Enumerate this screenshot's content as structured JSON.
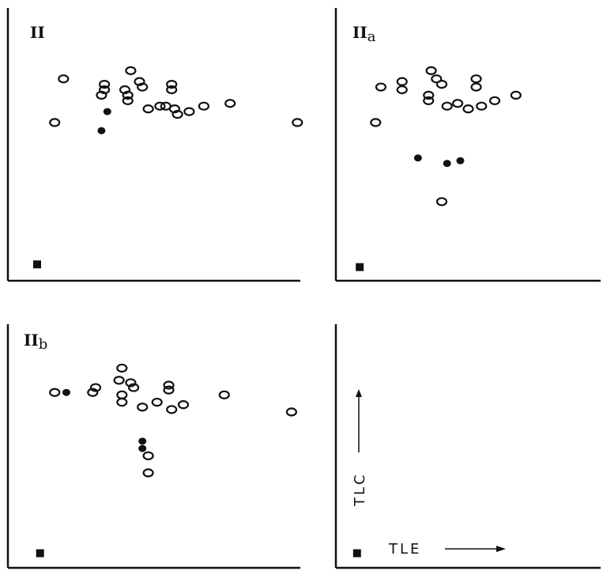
{
  "chart_data": [
    {
      "type": "scatter",
      "label": "II",
      "label_sub": "",
      "open": [
        [
          0.19,
          0.74
        ],
        [
          0.33,
          0.72
        ],
        [
          0.33,
          0.7
        ],
        [
          0.32,
          0.68
        ],
        [
          0.4,
          0.7
        ],
        [
          0.41,
          0.66
        ],
        [
          0.42,
          0.77
        ],
        [
          0.45,
          0.73
        ],
        [
          0.46,
          0.71
        ],
        [
          0.56,
          0.72
        ],
        [
          0.56,
          0.7
        ],
        [
          0.41,
          0.68
        ],
        [
          0.48,
          0.63
        ],
        [
          0.52,
          0.64
        ],
        [
          0.54,
          0.64
        ],
        [
          0.57,
          0.63
        ],
        [
          0.58,
          0.61
        ],
        [
          0.62,
          0.62
        ],
        [
          0.67,
          0.64
        ],
        [
          0.76,
          0.65
        ],
        [
          0.16,
          0.58
        ],
        [
          0.99,
          0.58
        ]
      ],
      "filled": [
        [
          0.34,
          0.62
        ],
        [
          0.32,
          0.55
        ]
      ],
      "square": [
        0.1,
        0.06
      ]
    },
    {
      "type": "scatter",
      "label": "II",
      "label_sub": "a",
      "open": [
        [
          0.17,
          0.71
        ],
        [
          0.25,
          0.73
        ],
        [
          0.25,
          0.7
        ],
        [
          0.36,
          0.77
        ],
        [
          0.38,
          0.74
        ],
        [
          0.4,
          0.72
        ],
        [
          0.35,
          0.68
        ],
        [
          0.35,
          0.66
        ],
        [
          0.53,
          0.74
        ],
        [
          0.53,
          0.71
        ],
        [
          0.42,
          0.64
        ],
        [
          0.46,
          0.65
        ],
        [
          0.5,
          0.63
        ],
        [
          0.55,
          0.64
        ],
        [
          0.6,
          0.66
        ],
        [
          0.68,
          0.68
        ],
        [
          0.15,
          0.58
        ],
        [
          0.4,
          0.29
        ]
      ],
      "filled": [
        [
          0.31,
          0.45
        ],
        [
          0.47,
          0.44
        ],
        [
          0.42,
          0.43
        ]
      ],
      "square": [
        0.09,
        0.05
      ]
    },
    {
      "type": "scatter",
      "label": "II",
      "label_sub": "b",
      "open": [
        [
          0.16,
          0.72
        ],
        [
          0.3,
          0.74
        ],
        [
          0.29,
          0.72
        ],
        [
          0.39,
          0.82
        ],
        [
          0.38,
          0.77
        ],
        [
          0.42,
          0.76
        ],
        [
          0.43,
          0.74
        ],
        [
          0.39,
          0.71
        ],
        [
          0.39,
          0.68
        ],
        [
          0.46,
          0.66
        ],
        [
          0.51,
          0.68
        ],
        [
          0.55,
          0.75
        ],
        [
          0.55,
          0.73
        ],
        [
          0.56,
          0.65
        ],
        [
          0.6,
          0.67
        ],
        [
          0.74,
          0.71
        ],
        [
          0.97,
          0.64
        ],
        [
          0.48,
          0.46
        ],
        [
          0.48,
          0.39
        ]
      ],
      "filled": [
        [
          0.46,
          0.52
        ],
        [
          0.46,
          0.49
        ],
        [
          0.2,
          0.72
        ]
      ],
      "square": [
        0.11,
        0.06
      ]
    },
    {
      "type": "axis-key",
      "ylabel": "TLC",
      "xlabel": "TLE",
      "square": [
        0.08,
        0.06
      ]
    }
  ]
}
